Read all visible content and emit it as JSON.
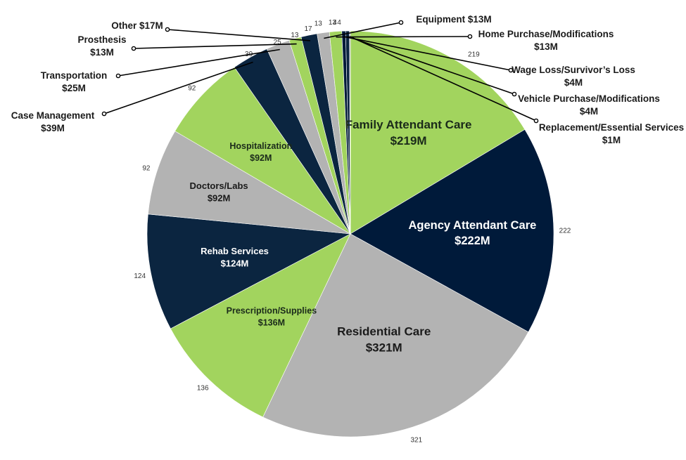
{
  "chart_data": {
    "type": "pie",
    "unit_prefix": "$",
    "unit_suffix": "M",
    "slices": [
      {
        "name": "Family Attendant Care",
        "value": 219,
        "value_label": "219",
        "label": "$219M",
        "color": "#a2d45e"
      },
      {
        "name": "Agency Attendant Care",
        "value": 222,
        "value_label": "222",
        "label": "$222M",
        "color": "#001a3a"
      },
      {
        "name": "Residential Care",
        "value": 321,
        "value_label": "321",
        "label": "$321M",
        "color": "#b3b3b3"
      },
      {
        "name": "Prescription/Supplies",
        "value": 136,
        "value_label": "136",
        "label": "$136M",
        "color": "#a2d45e"
      },
      {
        "name": "Rehab Services",
        "value": 124,
        "value_label": "124",
        "label": "$124M",
        "color": "#0b2540"
      },
      {
        "name": "Doctors/Labs",
        "value": 92,
        "value_label": "92",
        "label": "$92M",
        "color": "#b3b3b3"
      },
      {
        "name": "Hospitalization",
        "value": 92,
        "value_label": "92",
        "label": "$92M",
        "color": "#a2d45e"
      },
      {
        "name": "Case Management",
        "value": 39,
        "value_label": "39",
        "label": "$39M",
        "color": "#0b2540"
      },
      {
        "name": "Transportation",
        "value": 25,
        "value_label": "25",
        "label": "$25M",
        "color": "#b3b3b3"
      },
      {
        "name": "Prosthesis",
        "value": 13,
        "value_label": "13",
        "label": "$13M",
        "color": "#a2d45e"
      },
      {
        "name": "Other",
        "value": 17,
        "value_label": "17",
        "label": "$17M",
        "color": "#0b2540"
      },
      {
        "name": "Equipment",
        "value": 13,
        "value_label": "13",
        "label": "$13M",
        "color": "#b3b3b3"
      },
      {
        "name": "Home Purchase/Modifications",
        "value": 13,
        "value_label": "13",
        "label": "$13M",
        "color": "#a2d45e"
      },
      {
        "name": "Wage Loss/Survivor’s Loss",
        "value": 4,
        "value_label": "4",
        "label": "$4M",
        "color": "#001a3a"
      },
      {
        "name": "Vehicle Purchase/Modifications",
        "value": 4,
        "value_label": "4",
        "label": "$4M",
        "color": "#0b2540"
      },
      {
        "name": "Replacement/Essential Services",
        "value": 1,
        "value_label": "1",
        "label": "$1M",
        "color": "#b3b3b3"
      }
    ],
    "title": "",
    "legend": "none"
  }
}
